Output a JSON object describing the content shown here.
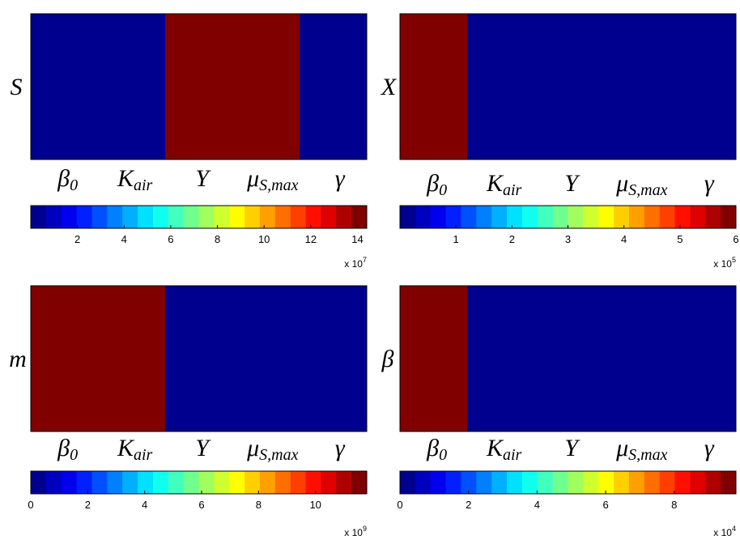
{
  "colors": {
    "high": "#800000",
    "low": "#00007f",
    "colormap": [
      "#00008f",
      "#0000bf",
      "#0000ef",
      "#0020ff",
      "#0050ff",
      "#0080ff",
      "#00b0ff",
      "#00e0ff",
      "#10ffef",
      "#40ffbf",
      "#70ff8f",
      "#a0ff5f",
      "#d0ff2f",
      "#ffff00",
      "#ffcf00",
      "#ff9f00",
      "#ff6f00",
      "#ff3f00",
      "#ff0f00",
      "#df0000",
      "#af0000",
      "#800000"
    ]
  },
  "chart_data": [
    {
      "type": "heatmap",
      "row_label": "S",
      "columns": [
        {
          "sym": "β",
          "sub": "0"
        },
        {
          "sym": "K",
          "sub": "air"
        },
        {
          "sym": "Y",
          "sub": ""
        },
        {
          "sym": "μ",
          "sub": "S,max"
        },
        {
          "sym": "γ",
          "sub": ""
        }
      ],
      "cells": [
        0,
        0,
        14,
        14,
        0
      ],
      "colorbar": {
        "min": 0,
        "max": 14.4,
        "ticks": [
          "2",
          "4",
          "6",
          "8",
          "10",
          "12",
          "14"
        ],
        "tick_values": [
          2,
          4,
          6,
          8,
          10,
          12,
          14
        ],
        "multiplier_base": "x 10",
        "multiplier_exp": "7"
      }
    },
    {
      "type": "heatmap",
      "row_label": "X",
      "columns": [
        {
          "sym": "β",
          "sub": "0"
        },
        {
          "sym": "K",
          "sub": "air"
        },
        {
          "sym": "Y",
          "sub": ""
        },
        {
          "sym": "μ",
          "sub": "S,max"
        },
        {
          "sym": "γ",
          "sub": ""
        }
      ],
      "cells": [
        6,
        0,
        0,
        0,
        0
      ],
      "colorbar": {
        "min": 0,
        "max": 6,
        "ticks": [
          "1",
          "2",
          "3",
          "4",
          "5",
          "6"
        ],
        "tick_values": [
          1,
          2,
          3,
          4,
          5,
          6
        ],
        "multiplier_base": "x 10",
        "multiplier_exp": "5"
      }
    },
    {
      "type": "heatmap",
      "row_label": "m",
      "columns": [
        {
          "sym": "β",
          "sub": "0"
        },
        {
          "sym": "K",
          "sub": "air"
        },
        {
          "sym": "Y",
          "sub": ""
        },
        {
          "sym": "μ",
          "sub": "S,max"
        },
        {
          "sym": "γ",
          "sub": ""
        }
      ],
      "cells": [
        11.8,
        11.8,
        0,
        0,
        0
      ],
      "colorbar": {
        "min": 0,
        "max": 11.8,
        "ticks": [
          "0",
          "2",
          "4",
          "6",
          "8",
          "10"
        ],
        "tick_values": [
          0,
          2,
          4,
          6,
          8,
          10
        ],
        "multiplier_base": "x 10",
        "multiplier_exp": "9"
      }
    },
    {
      "type": "heatmap",
      "row_label": "β",
      "columns": [
        {
          "sym": "β",
          "sub": "0"
        },
        {
          "sym": "K",
          "sub": "air"
        },
        {
          "sym": "Y",
          "sub": ""
        },
        {
          "sym": "μ",
          "sub": "S,max"
        },
        {
          "sym": "γ",
          "sub": ""
        }
      ],
      "cells": [
        9.8,
        0,
        0,
        0,
        0
      ],
      "colorbar": {
        "min": 0,
        "max": 9.8,
        "ticks": [
          "0",
          "2",
          "4",
          "6",
          "8"
        ],
        "tick_values": [
          0,
          2,
          4,
          6,
          8
        ],
        "multiplier_base": "x 10",
        "multiplier_exp": "4"
      }
    }
  ]
}
